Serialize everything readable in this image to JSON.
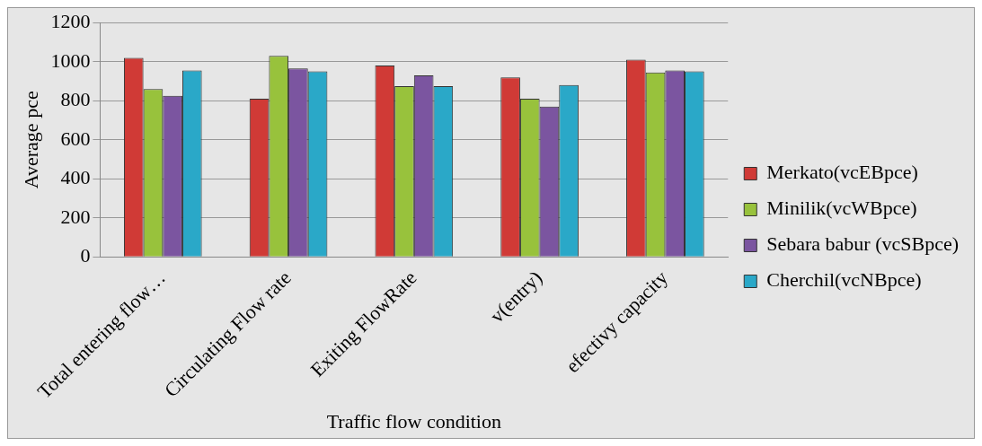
{
  "chart_data": {
    "type": "bar",
    "xlabel": "Traffic flow condition",
    "ylabel": "Average pce",
    "categories": [
      "Total entering flow…",
      "Circulating Flow rate",
      "Exiting FlowRate",
      "v(entry)",
      "efectivy capacity"
    ],
    "series": [
      {
        "name": "Merkato(vcEBpce)",
        "color": "#d03a36",
        "values": [
          1020,
          810,
          980,
          920,
          1010
        ]
      },
      {
        "name": "Minilik(vcWBpce)",
        "color": "#98c23c",
        "values": [
          860,
          1030,
          875,
          810,
          945
        ]
      },
      {
        "name": "Sebara babur (vcSBpce)",
        "color": "#7b55a0",
        "values": [
          825,
          965,
          930,
          770,
          955
        ]
      },
      {
        "name": "Cherchil(vcNBpce)",
        "color": "#2aa8c8",
        "values": [
          955,
          950,
          875,
          880,
          950
        ]
      }
    ],
    "ylim": [
      0,
      1200
    ],
    "yticks": [
      0,
      200,
      400,
      600,
      800,
      1000,
      1200
    ],
    "grid": "y",
    "legend": "right"
  }
}
